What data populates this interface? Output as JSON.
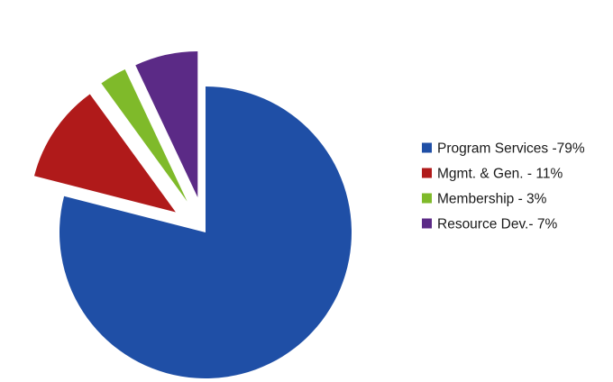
{
  "chart_data": {
    "type": "pie",
    "title": "",
    "exploded": true,
    "legend_position": "right",
    "slices": [
      {
        "label": "Program Services -79%",
        "value": 79,
        "color": "#1f4fa6"
      },
      {
        "label": "Mgmt.  & Gen. - 11%",
        "value": 11,
        "color": "#b01a1a"
      },
      {
        "label": "Membership - 3%",
        "value": 3,
        "color": "#7fba2a"
      },
      {
        "label": "Resource Dev.- 7%",
        "value": 7,
        "color": "#5b2a86"
      }
    ]
  }
}
